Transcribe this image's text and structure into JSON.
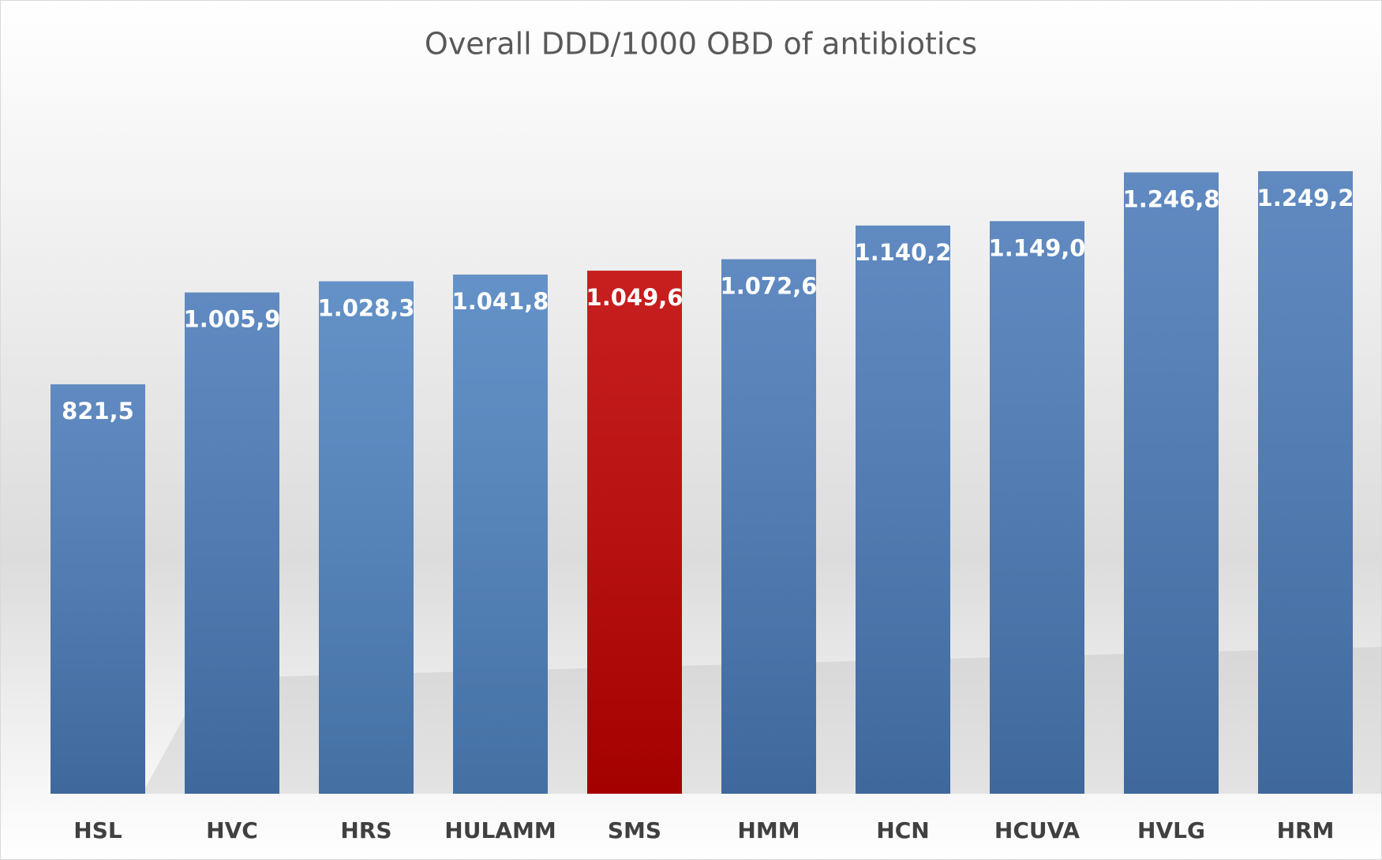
{
  "chart_data": {
    "type": "bar",
    "title": "Overall DDD/1000 OBD of antibiotics",
    "categories": [
      "HSL",
      "HVC",
      "HRS",
      "HULAMM",
      "SMS",
      "HMM",
      "HCN",
      "HCUVA",
      "HVLG",
      "HRM"
    ],
    "values": [
      821.5,
      1005.9,
      1028.3,
      1041.8,
      1049.6,
      1072.6,
      1140.2,
      1149.0,
      1246.8,
      1249.2
    ],
    "value_labels": [
      "821,5",
      "1.005,9",
      "1.028,3",
      "1.041,8",
      "1.049,6",
      "1.072,6",
      "1.140,2",
      "1.149,0",
      "1.246,8",
      "1.249,2"
    ],
    "colors": [
      "#4a7ab8",
      "#4a7ab8",
      "#4f83c0",
      "#4f83c0",
      "#c00000",
      "#4a7ab8",
      "#4a7ab8",
      "#4a7ab8",
      "#4a7ab8",
      "#4a7ab8"
    ]
  }
}
